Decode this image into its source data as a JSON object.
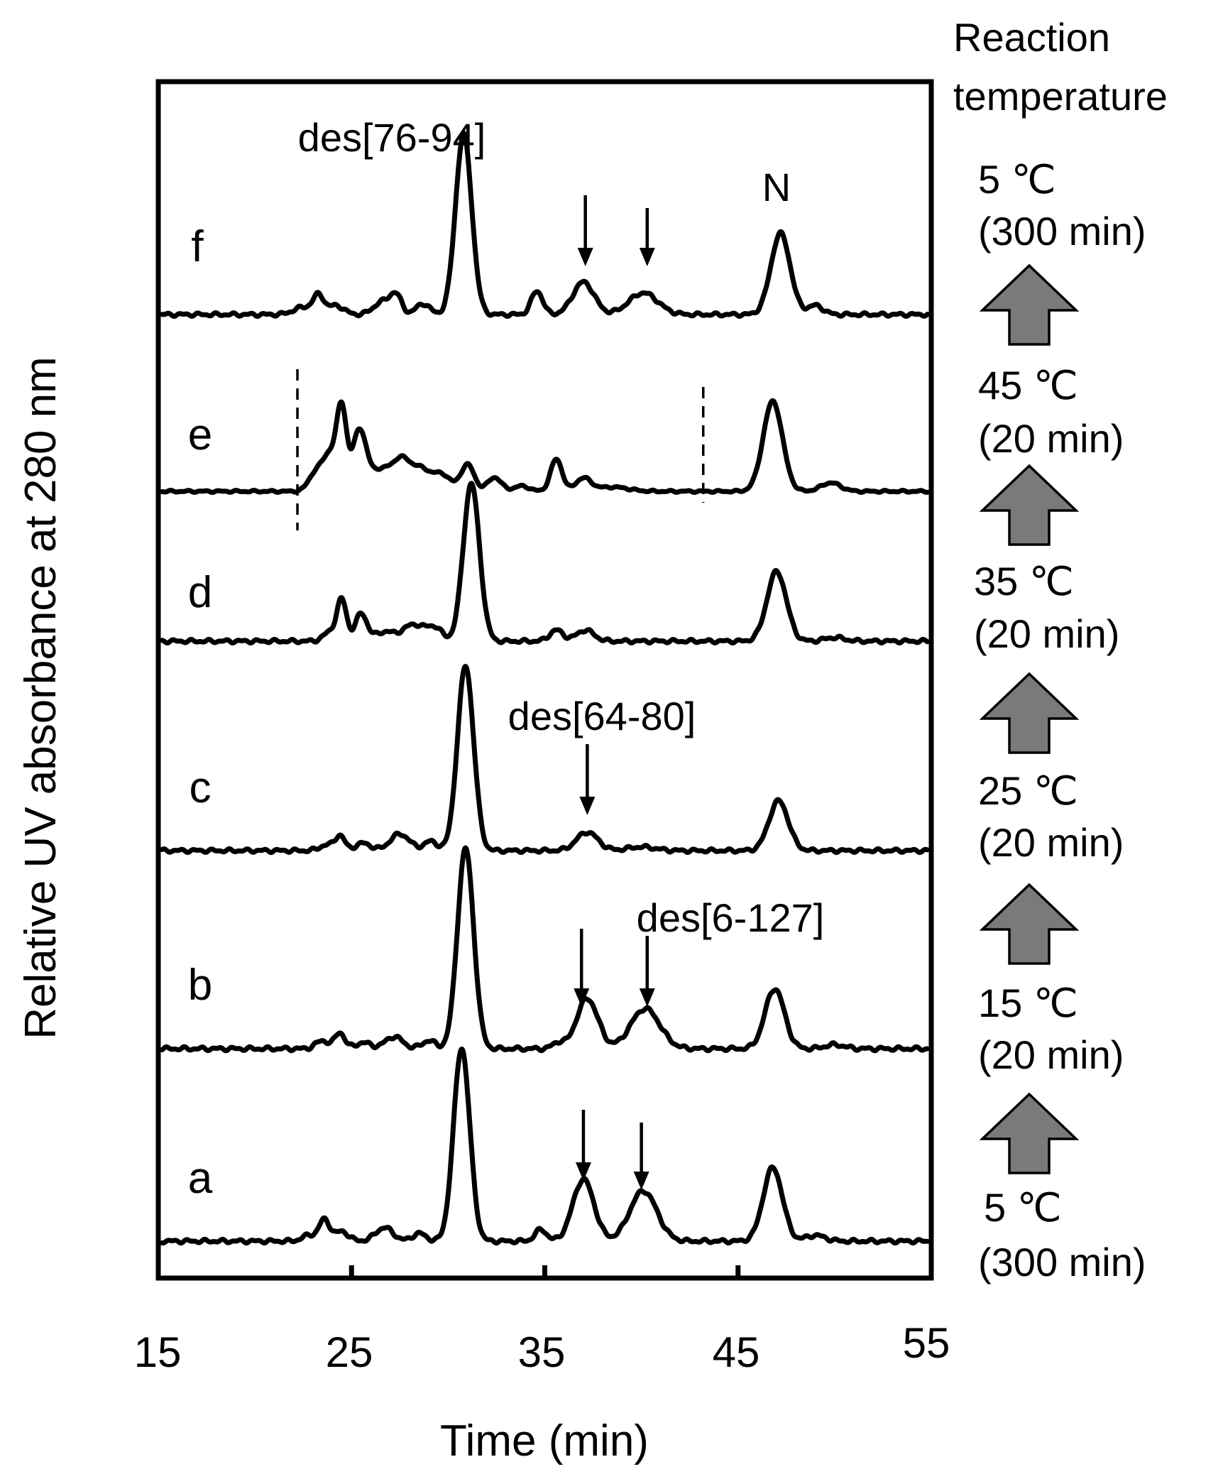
{
  "chart_data": {
    "type": "line",
    "title": "",
    "xlabel": "Time (min)",
    "ylabel": "Relative UV absorbance at 280 nm",
    "xlim": [
      15,
      55
    ],
    "x_ticks": [
      25,
      35,
      45
    ],
    "x_tick_labels": [
      "15",
      "25",
      "35",
      "45",
      "55"
    ],
    "grid": false,
    "side_header": [
      "Reaction",
      "temperature"
    ],
    "series": [
      {
        "name": "a",
        "baseline": 0,
        "peaks": [
          {
            "t": 22.8,
            "h": 0.03,
            "w": 0.35
          },
          {
            "t": 23.6,
            "h": 0.11,
            "w": 0.28
          },
          {
            "t": 24.5,
            "h": 0.05,
            "w": 0.35
          },
          {
            "t": 26.7,
            "h": 0.07,
            "w": 0.45
          },
          {
            "t": 28.5,
            "h": 0.04,
            "w": 0.35
          },
          {
            "t": 30.7,
            "h": 1.0,
            "w": 0.42
          },
          {
            "t": 34.8,
            "h": 0.06,
            "w": 0.3
          },
          {
            "t": 37.0,
            "h": 0.32,
            "w": 0.55
          },
          {
            "t": 40.1,
            "h": 0.26,
            "w": 0.7
          },
          {
            "t": 46.8,
            "h": 0.38,
            "w": 0.5
          },
          {
            "t": 49.0,
            "h": 0.03,
            "w": 0.5
          }
        ]
      },
      {
        "name": "b",
        "baseline": 0,
        "peaks": [
          {
            "t": 23.5,
            "h": 0.04,
            "w": 0.35
          },
          {
            "t": 24.4,
            "h": 0.08,
            "w": 0.25
          },
          {
            "t": 25.6,
            "h": 0.03,
            "w": 0.4
          },
          {
            "t": 27.2,
            "h": 0.06,
            "w": 0.45
          },
          {
            "t": 29.0,
            "h": 0.04,
            "w": 0.35
          },
          {
            "t": 30.9,
            "h": 1.0,
            "w": 0.42
          },
          {
            "t": 35.7,
            "h": 0.03,
            "w": 0.3
          },
          {
            "t": 37.2,
            "h": 0.25,
            "w": 0.55
          },
          {
            "t": 40.2,
            "h": 0.2,
            "w": 0.75
          },
          {
            "t": 46.9,
            "h": 0.3,
            "w": 0.5
          },
          {
            "t": 50.0,
            "h": 0.02,
            "w": 0.5
          }
        ]
      },
      {
        "name": "c",
        "baseline": 0,
        "peaks": [
          {
            "t": 23.7,
            "h": 0.03,
            "w": 0.35
          },
          {
            "t": 24.4,
            "h": 0.08,
            "w": 0.25
          },
          {
            "t": 25.6,
            "h": 0.04,
            "w": 0.4
          },
          {
            "t": 27.5,
            "h": 0.09,
            "w": 0.5
          },
          {
            "t": 29.1,
            "h": 0.05,
            "w": 0.35
          },
          {
            "t": 30.9,
            "h": 1.0,
            "w": 0.42
          },
          {
            "t": 37.2,
            "h": 0.1,
            "w": 0.55
          },
          {
            "t": 40.0,
            "h": 0.02,
            "w": 0.7
          },
          {
            "t": 47.1,
            "h": 0.27,
            "w": 0.5
          }
        ]
      },
      {
        "name": "d",
        "baseline": 0,
        "peaks": [
          {
            "t": 23.9,
            "h": 0.05,
            "w": 0.35
          },
          {
            "t": 24.5,
            "h": 0.22,
            "w": 0.25
          },
          {
            "t": 25.5,
            "h": 0.15,
            "w": 0.3
          },
          {
            "t": 26.7,
            "h": 0.05,
            "w": 0.5
          },
          {
            "t": 28.2,
            "h": 0.09,
            "w": 0.55
          },
          {
            "t": 29.3,
            "h": 0.07,
            "w": 0.4
          },
          {
            "t": 31.2,
            "h": 0.86,
            "w": 0.42
          },
          {
            "t": 35.6,
            "h": 0.06,
            "w": 0.35
          },
          {
            "t": 37.1,
            "h": 0.06,
            "w": 0.45
          },
          {
            "t": 47.0,
            "h": 0.38,
            "w": 0.5
          },
          {
            "t": 50.0,
            "h": 0.02,
            "w": 0.5
          }
        ]
      },
      {
        "name": "e",
        "baseline": 0,
        "peaks": [
          {
            "t": 23.1,
            "h": 0.15,
            "w": 0.35
          },
          {
            "t": 23.9,
            "h": 0.35,
            "w": 0.4
          },
          {
            "t": 24.5,
            "h": 0.7,
            "w": 0.25
          },
          {
            "t": 25.4,
            "h": 0.55,
            "w": 0.35
          },
          {
            "t": 26.5,
            "h": 0.2,
            "w": 0.6
          },
          {
            "t": 27.6,
            "h": 0.26,
            "w": 0.45
          },
          {
            "t": 28.6,
            "h": 0.2,
            "w": 0.5
          },
          {
            "t": 29.7,
            "h": 0.15,
            "w": 0.45
          },
          {
            "t": 31.0,
            "h": 0.25,
            "w": 0.35
          },
          {
            "t": 32.4,
            "h": 0.13,
            "w": 0.35
          },
          {
            "t": 33.8,
            "h": 0.05,
            "w": 0.4
          },
          {
            "t": 35.6,
            "h": 0.3,
            "w": 0.3
          },
          {
            "t": 37.0,
            "h": 0.12,
            "w": 0.4
          },
          {
            "t": 38.5,
            "h": 0.04,
            "w": 0.8
          },
          {
            "t": 46.8,
            "h": 0.84,
            "w": 0.5
          },
          {
            "t": 49.8,
            "h": 0.08,
            "w": 0.5
          }
        ]
      },
      {
        "name": "f",
        "baseline": 0,
        "peaks": [
          {
            "t": 22.5,
            "h": 0.04,
            "w": 0.5
          },
          {
            "t": 23.3,
            "h": 0.1,
            "w": 0.28
          },
          {
            "t": 24.2,
            "h": 0.05,
            "w": 0.4
          },
          {
            "t": 26.6,
            "h": 0.07,
            "w": 0.45
          },
          {
            "t": 27.3,
            "h": 0.1,
            "w": 0.3
          },
          {
            "t": 28.7,
            "h": 0.06,
            "w": 0.35
          },
          {
            "t": 30.8,
            "h": 1.0,
            "w": 0.42
          },
          {
            "t": 34.6,
            "h": 0.13,
            "w": 0.3
          },
          {
            "t": 37.0,
            "h": 0.18,
            "w": 0.55
          },
          {
            "t": 40.1,
            "h": 0.12,
            "w": 0.75
          },
          {
            "t": 47.2,
            "h": 0.45,
            "w": 0.5
          },
          {
            "t": 49.0,
            "h": 0.05,
            "w": 0.4
          }
        ]
      }
    ],
    "annotations": {
      "des_76_94": "des[76-94]",
      "n_peak": "N",
      "des_64_80": "des[64-80]",
      "des_6_127": "des[6-127]"
    },
    "arrow_markers": [
      {
        "trace": "f",
        "t": 37.1
      },
      {
        "trace": "f",
        "t": 40.3
      },
      {
        "trace": "c",
        "t": 37.2
      },
      {
        "trace": "b",
        "t": 36.9
      },
      {
        "trace": "b",
        "t": 40.3
      },
      {
        "trace": "a",
        "t": 37.0
      },
      {
        "trace": "a",
        "t": 40.0
      }
    ],
    "dashed_markers": [
      {
        "trace": "e",
        "t": 22.2
      },
      {
        "trace": "e",
        "t": 43.2
      }
    ],
    "conditions": [
      {
        "trace": "f",
        "temp": "5 ℃",
        "time": "(300 min)"
      },
      {
        "trace": "e",
        "temp": "45 ℃",
        "time": "(20 min)"
      },
      {
        "trace": "d",
        "temp": "35 ℃",
        "time": "(20 min)"
      },
      {
        "trace": "c",
        "temp": "25 ℃",
        "time": "(20 min)"
      },
      {
        "trace": "b",
        "temp": "15 ℃",
        "time": "(20 min)"
      },
      {
        "trace": "a",
        "temp": "5 ℃",
        "time": "(300 min)"
      }
    ]
  }
}
